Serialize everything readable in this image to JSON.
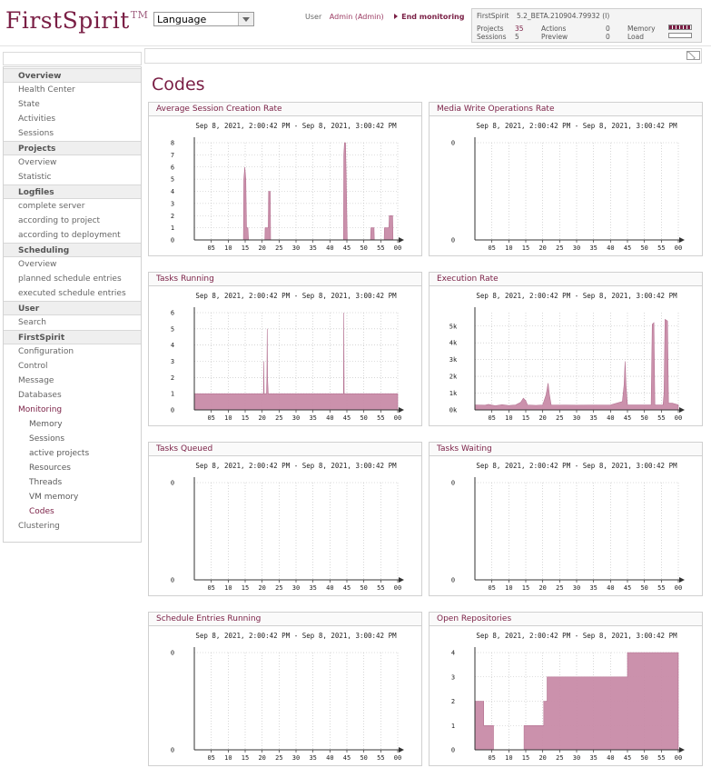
{
  "header": {
    "logo_text": "FirstSpirit",
    "logo_tm": "TM",
    "language": "Language",
    "user_label": "User",
    "user_name": "Admin (Admin)",
    "end_monitoring": "End monitoring",
    "status": {
      "product": "FirstSpirit",
      "version": "5.2_BETA.210904.79932 (I)",
      "projects_label": "Projects",
      "projects_value": "35",
      "sessions_label": "Sessions",
      "sessions_value": "5",
      "actions_label": "Actions",
      "actions_value": "0",
      "preview_label": "Preview",
      "preview_value": "0",
      "memory_label": "Memory",
      "load_label": "Load"
    }
  },
  "icons": {
    "mail": "envelope-icon",
    "end_monitoring": "triangle-right-icon",
    "language": "chevron-down-icon"
  },
  "colors": {
    "accent": "#7a1f45",
    "chart_fill": "#c98ca8",
    "chart_stroke": "#b06a8c"
  },
  "sidebar": [
    {
      "label": "Overview",
      "type": "hdr"
    },
    {
      "label": "Health Center",
      "type": "item"
    },
    {
      "label": "State",
      "type": "item"
    },
    {
      "label": "Activities",
      "type": "item"
    },
    {
      "label": "Sessions",
      "type": "item"
    },
    {
      "label": "Projects",
      "type": "hdr"
    },
    {
      "label": "Overview",
      "type": "item"
    },
    {
      "label": "Statistic",
      "type": "item"
    },
    {
      "label": "Logfiles",
      "type": "hdr"
    },
    {
      "label": "complete server",
      "type": "item"
    },
    {
      "label": "according to project",
      "type": "item"
    },
    {
      "label": "according to deployment",
      "type": "item"
    },
    {
      "label": "Scheduling",
      "type": "hdr"
    },
    {
      "label": "Overview",
      "type": "item"
    },
    {
      "label": "planned schedule entries",
      "type": "item"
    },
    {
      "label": "executed schedule entries",
      "type": "item"
    },
    {
      "label": "User",
      "type": "hdr"
    },
    {
      "label": "Search",
      "type": "item"
    },
    {
      "label": "FirstSpirit",
      "type": "hdr"
    },
    {
      "label": "Configuration",
      "type": "item"
    },
    {
      "label": "Control",
      "type": "item"
    },
    {
      "label": "Message",
      "type": "item"
    },
    {
      "label": "Databases",
      "type": "item"
    },
    {
      "label": "Monitoring",
      "type": "item",
      "active": true
    },
    {
      "label": "Memory",
      "type": "sub"
    },
    {
      "label": "Sessions",
      "type": "sub"
    },
    {
      "label": "active projects",
      "type": "sub"
    },
    {
      "label": "Resources",
      "type": "sub"
    },
    {
      "label": "Threads",
      "type": "sub"
    },
    {
      "label": "VM memory",
      "type": "sub"
    },
    {
      "label": "Codes",
      "type": "sub",
      "active": true
    },
    {
      "label": "Clustering",
      "type": "item"
    }
  ],
  "main": {
    "title": "Codes"
  },
  "chart_data": [
    {
      "title": "Average Session Creation Rate",
      "subtitle": "Sep 8, 2021, 2:00:42 PM - Sep 8, 2021, 3:00:42 PM",
      "type": "area",
      "xlabels": [
        "05",
        "10",
        "15",
        "20",
        "25",
        "30",
        "35",
        "40",
        "45",
        "50",
        "55",
        "00"
      ],
      "xlim": [
        0,
        60
      ],
      "ylim": [
        0,
        8
      ],
      "yticks": [
        "0",
        "1",
        "2",
        "3",
        "4",
        "5",
        "6",
        "7",
        "8"
      ],
      "grid": true,
      "points": [
        [
          0,
          0
        ],
        [
          14.5,
          0
        ],
        [
          14.6,
          5
        ],
        [
          14.9,
          6
        ],
        [
          15.2,
          5
        ],
        [
          15.4,
          1
        ],
        [
          15.8,
          1
        ],
        [
          16,
          0
        ],
        [
          20.8,
          0
        ],
        [
          20.9,
          1
        ],
        [
          21.8,
          1
        ],
        [
          21.9,
          4
        ],
        [
          22.4,
          4
        ],
        [
          22.5,
          0
        ],
        [
          44,
          0
        ],
        [
          44.1,
          7
        ],
        [
          44.3,
          8
        ],
        [
          44.6,
          8
        ],
        [
          44.8,
          5
        ],
        [
          45.1,
          0
        ],
        [
          52,
          0
        ],
        [
          52.1,
          1
        ],
        [
          53,
          1
        ],
        [
          53.1,
          0
        ],
        [
          56,
          0
        ],
        [
          56.1,
          1
        ],
        [
          57.4,
          1
        ],
        [
          57.5,
          2
        ],
        [
          58.5,
          2
        ],
        [
          58.6,
          0
        ],
        [
          60,
          0
        ]
      ]
    },
    {
      "title": "Media Write Operations Rate",
      "subtitle": "Sep 8, 2021, 2:00:42 PM - Sep 8, 2021, 3:00:42 PM",
      "type": "area",
      "xlabels": [
        "05",
        "10",
        "15",
        "20",
        "25",
        "30",
        "35",
        "40",
        "45",
        "50",
        "55",
        "00"
      ],
      "xlim": [
        0,
        60
      ],
      "ylim": [
        0,
        1
      ],
      "yticks": [
        "0",
        "0"
      ],
      "grid": true,
      "points": []
    },
    {
      "title": "Tasks Running",
      "subtitle": "Sep 8, 2021, 2:00:42 PM - Sep 8, 2021, 3:00:42 PM",
      "type": "area",
      "xlabels": [
        "05",
        "10",
        "15",
        "20",
        "25",
        "30",
        "35",
        "40",
        "45",
        "50",
        "55",
        "00"
      ],
      "xlim": [
        0,
        60
      ],
      "ylim": [
        0,
        6
      ],
      "yticks": [
        "0",
        "1",
        "2",
        "3",
        "4",
        "5",
        "6"
      ],
      "grid": true,
      "points": [
        [
          0,
          1
        ],
        [
          20.4,
          1
        ],
        [
          20.5,
          3
        ],
        [
          20.6,
          1
        ],
        [
          21.3,
          1
        ],
        [
          21.4,
          2
        ],
        [
          21.5,
          5
        ],
        [
          21.6,
          2
        ],
        [
          21.8,
          1
        ],
        [
          44,
          1
        ],
        [
          44.1,
          6
        ],
        [
          44.2,
          1
        ],
        [
          60,
          1
        ]
      ]
    },
    {
      "title": "Execution Rate",
      "subtitle": "Sep 8, 2021, 2:00:42 PM - Sep 8, 2021, 3:00:42 PM",
      "type": "area",
      "xlabels": [
        "05",
        "10",
        "15",
        "20",
        "25",
        "30",
        "35",
        "40",
        "45",
        "50",
        "55",
        "00"
      ],
      "xlim": [
        0,
        60
      ],
      "ylim": [
        0,
        5800
      ],
      "yticks": [
        "0k",
        "1k",
        "2k",
        "3k",
        "4k",
        "5k"
      ],
      "ytick_values": [
        0,
        1000,
        2000,
        3000,
        4000,
        5000
      ],
      "grid": true,
      "points": [
        [
          0,
          300
        ],
        [
          3,
          280
        ],
        [
          4,
          330
        ],
        [
          6,
          250
        ],
        [
          8,
          310
        ],
        [
          10,
          260
        ],
        [
          12,
          300
        ],
        [
          13.5,
          450
        ],
        [
          14.3,
          700
        ],
        [
          15,
          550
        ],
        [
          15.5,
          300
        ],
        [
          18,
          270
        ],
        [
          20,
          300
        ],
        [
          21,
          900
        ],
        [
          21.6,
          1600
        ],
        [
          22,
          900
        ],
        [
          22.5,
          300
        ],
        [
          30,
          280
        ],
        [
          40,
          300
        ],
        [
          43.5,
          500
        ],
        [
          44,
          1500
        ],
        [
          44.3,
          2900
        ],
        [
          44.6,
          1400
        ],
        [
          45,
          300
        ],
        [
          52,
          300
        ],
        [
          52.3,
          5100
        ],
        [
          52.8,
          5200
        ],
        [
          53.1,
          300
        ],
        [
          55.5,
          300
        ],
        [
          55.8,
          1000
        ],
        [
          56.1,
          5400
        ],
        [
          56.8,
          5300
        ],
        [
          57.1,
          400
        ],
        [
          58.2,
          400
        ],
        [
          60,
          300
        ]
      ]
    },
    {
      "title": "Tasks Queued",
      "subtitle": "Sep 8, 2021, 2:00:42 PM - Sep 8, 2021, 3:00:42 PM",
      "type": "area",
      "xlabels": [
        "05",
        "10",
        "15",
        "20",
        "25",
        "30",
        "35",
        "40",
        "45",
        "50",
        "55",
        "00"
      ],
      "xlim": [
        0,
        60
      ],
      "ylim": [
        0,
        1
      ],
      "yticks": [
        "0",
        "0"
      ],
      "grid": true,
      "points": []
    },
    {
      "title": "Tasks Waiting",
      "subtitle": "Sep 8, 2021, 2:00:42 PM - Sep 8, 2021, 3:00:42 PM",
      "type": "area",
      "xlabels": [
        "05",
        "10",
        "15",
        "20",
        "25",
        "30",
        "35",
        "40",
        "45",
        "50",
        "55",
        "00"
      ],
      "xlim": [
        0,
        60
      ],
      "ylim": [
        0,
        1
      ],
      "yticks": [
        "0",
        "0"
      ],
      "grid": true,
      "points": []
    },
    {
      "title": "Schedule Entries Running",
      "subtitle": "Sep 8, 2021, 2:00:42 PM - Sep 8, 2021, 3:00:42 PM",
      "type": "area",
      "xlabels": [
        "05",
        "10",
        "15",
        "20",
        "25",
        "30",
        "35",
        "40",
        "45",
        "50",
        "55",
        "00"
      ],
      "xlim": [
        0,
        60
      ],
      "ylim": [
        0,
        1
      ],
      "yticks": [
        "0",
        "0"
      ],
      "grid": true,
      "points": []
    },
    {
      "title": "Open Repositories",
      "subtitle": "Sep 8, 2021, 2:00:42 PM - Sep 8, 2021, 3:00:42 PM",
      "type": "area",
      "xlabels": [
        "05",
        "10",
        "15",
        "20",
        "25",
        "30",
        "35",
        "40",
        "45",
        "50",
        "55",
        "00"
      ],
      "xlim": [
        0,
        60
      ],
      "ylim": [
        0,
        4
      ],
      "yticks": [
        "0",
        "1",
        "2",
        "3",
        "4"
      ],
      "grid": true,
      "points": [
        [
          0,
          2
        ],
        [
          2.6,
          2
        ],
        [
          2.6,
          1
        ],
        [
          5.5,
          1
        ],
        [
          5.5,
          0
        ],
        [
          14.5,
          0
        ],
        [
          14.5,
          1
        ],
        [
          20.3,
          1
        ],
        [
          20.3,
          2
        ],
        [
          21.3,
          2
        ],
        [
          21.3,
          3
        ],
        [
          45,
          3
        ],
        [
          45,
          4
        ],
        [
          60,
          4
        ]
      ]
    }
  ]
}
